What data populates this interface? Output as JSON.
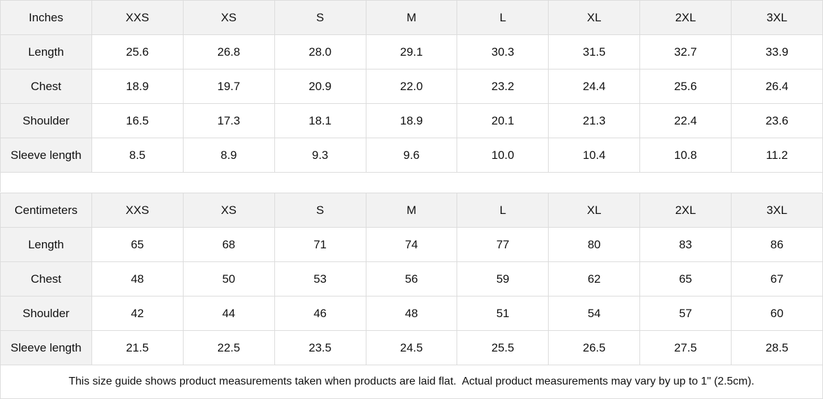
{
  "tables": [
    {
      "unit": "Inches",
      "sizes": [
        "XXS",
        "XS",
        "S",
        "M",
        "L",
        "XL",
        "2XL",
        "3XL"
      ],
      "rows": [
        {
          "label": "Length",
          "values": [
            "25.6",
            "26.8",
            "28.0",
            "29.1",
            "30.3",
            "31.5",
            "32.7",
            "33.9"
          ]
        },
        {
          "label": "Chest",
          "values": [
            "18.9",
            "19.7",
            "20.9",
            "22.0",
            "23.2",
            "24.4",
            "25.6",
            "26.4"
          ]
        },
        {
          "label": "Shoulder",
          "values": [
            "16.5",
            "17.3",
            "18.1",
            "18.9",
            "20.1",
            "21.3",
            "22.4",
            "23.6"
          ]
        },
        {
          "label": "Sleeve length",
          "values": [
            "8.5",
            "8.9",
            "9.3",
            "9.6",
            "10.0",
            "10.4",
            "10.8",
            "11.2"
          ]
        }
      ]
    },
    {
      "unit": "Centimeters",
      "sizes": [
        "XXS",
        "XS",
        "S",
        "M",
        "L",
        "XL",
        "2XL",
        "3XL"
      ],
      "rows": [
        {
          "label": "Length",
          "values": [
            "65",
            "68",
            "71",
            "74",
            "77",
            "80",
            "83",
            "86"
          ]
        },
        {
          "label": "Chest",
          "values": [
            "48",
            "50",
            "53",
            "56",
            "59",
            "62",
            "65",
            "67"
          ]
        },
        {
          "label": "Shoulder",
          "values": [
            "42",
            "44",
            "46",
            "48",
            "51",
            "54",
            "57",
            "60"
          ]
        },
        {
          "label": "Sleeve length",
          "values": [
            "21.5",
            "22.5",
            "23.5",
            "24.5",
            "25.5",
            "26.5",
            "27.5",
            "28.5"
          ]
        }
      ]
    }
  ],
  "note": "This size guide shows product measurements taken when products are laid flat.  Actual product measurements may vary by up to 1\" (2.5cm).",
  "colors": {
    "header_bg": "#f2f2f2",
    "border": "#dcdcdc"
  }
}
